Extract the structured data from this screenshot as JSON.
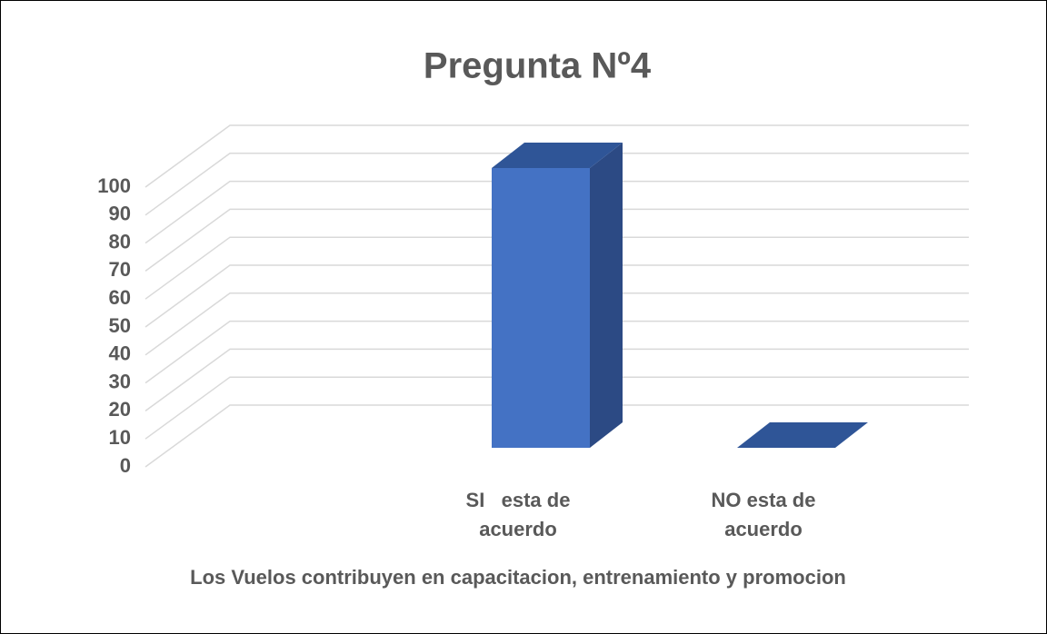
{
  "chart_data": {
    "type": "bar3d",
    "title": "Pregunta Nº4",
    "categories": [
      "SI   esta de acuerdo",
      "NO esta de acuerdo"
    ],
    "values": [
      100,
      0
    ],
    "color": "#4472c4",
    "xlabel": "Los Vuelos contribuyen en capacitacion, entrenamiento y promocion",
    "ylim": [
      0,
      100
    ],
    "yticks": [
      0,
      10,
      20,
      30,
      40,
      50,
      60,
      70,
      80,
      90,
      100
    ],
    "grid": true
  }
}
